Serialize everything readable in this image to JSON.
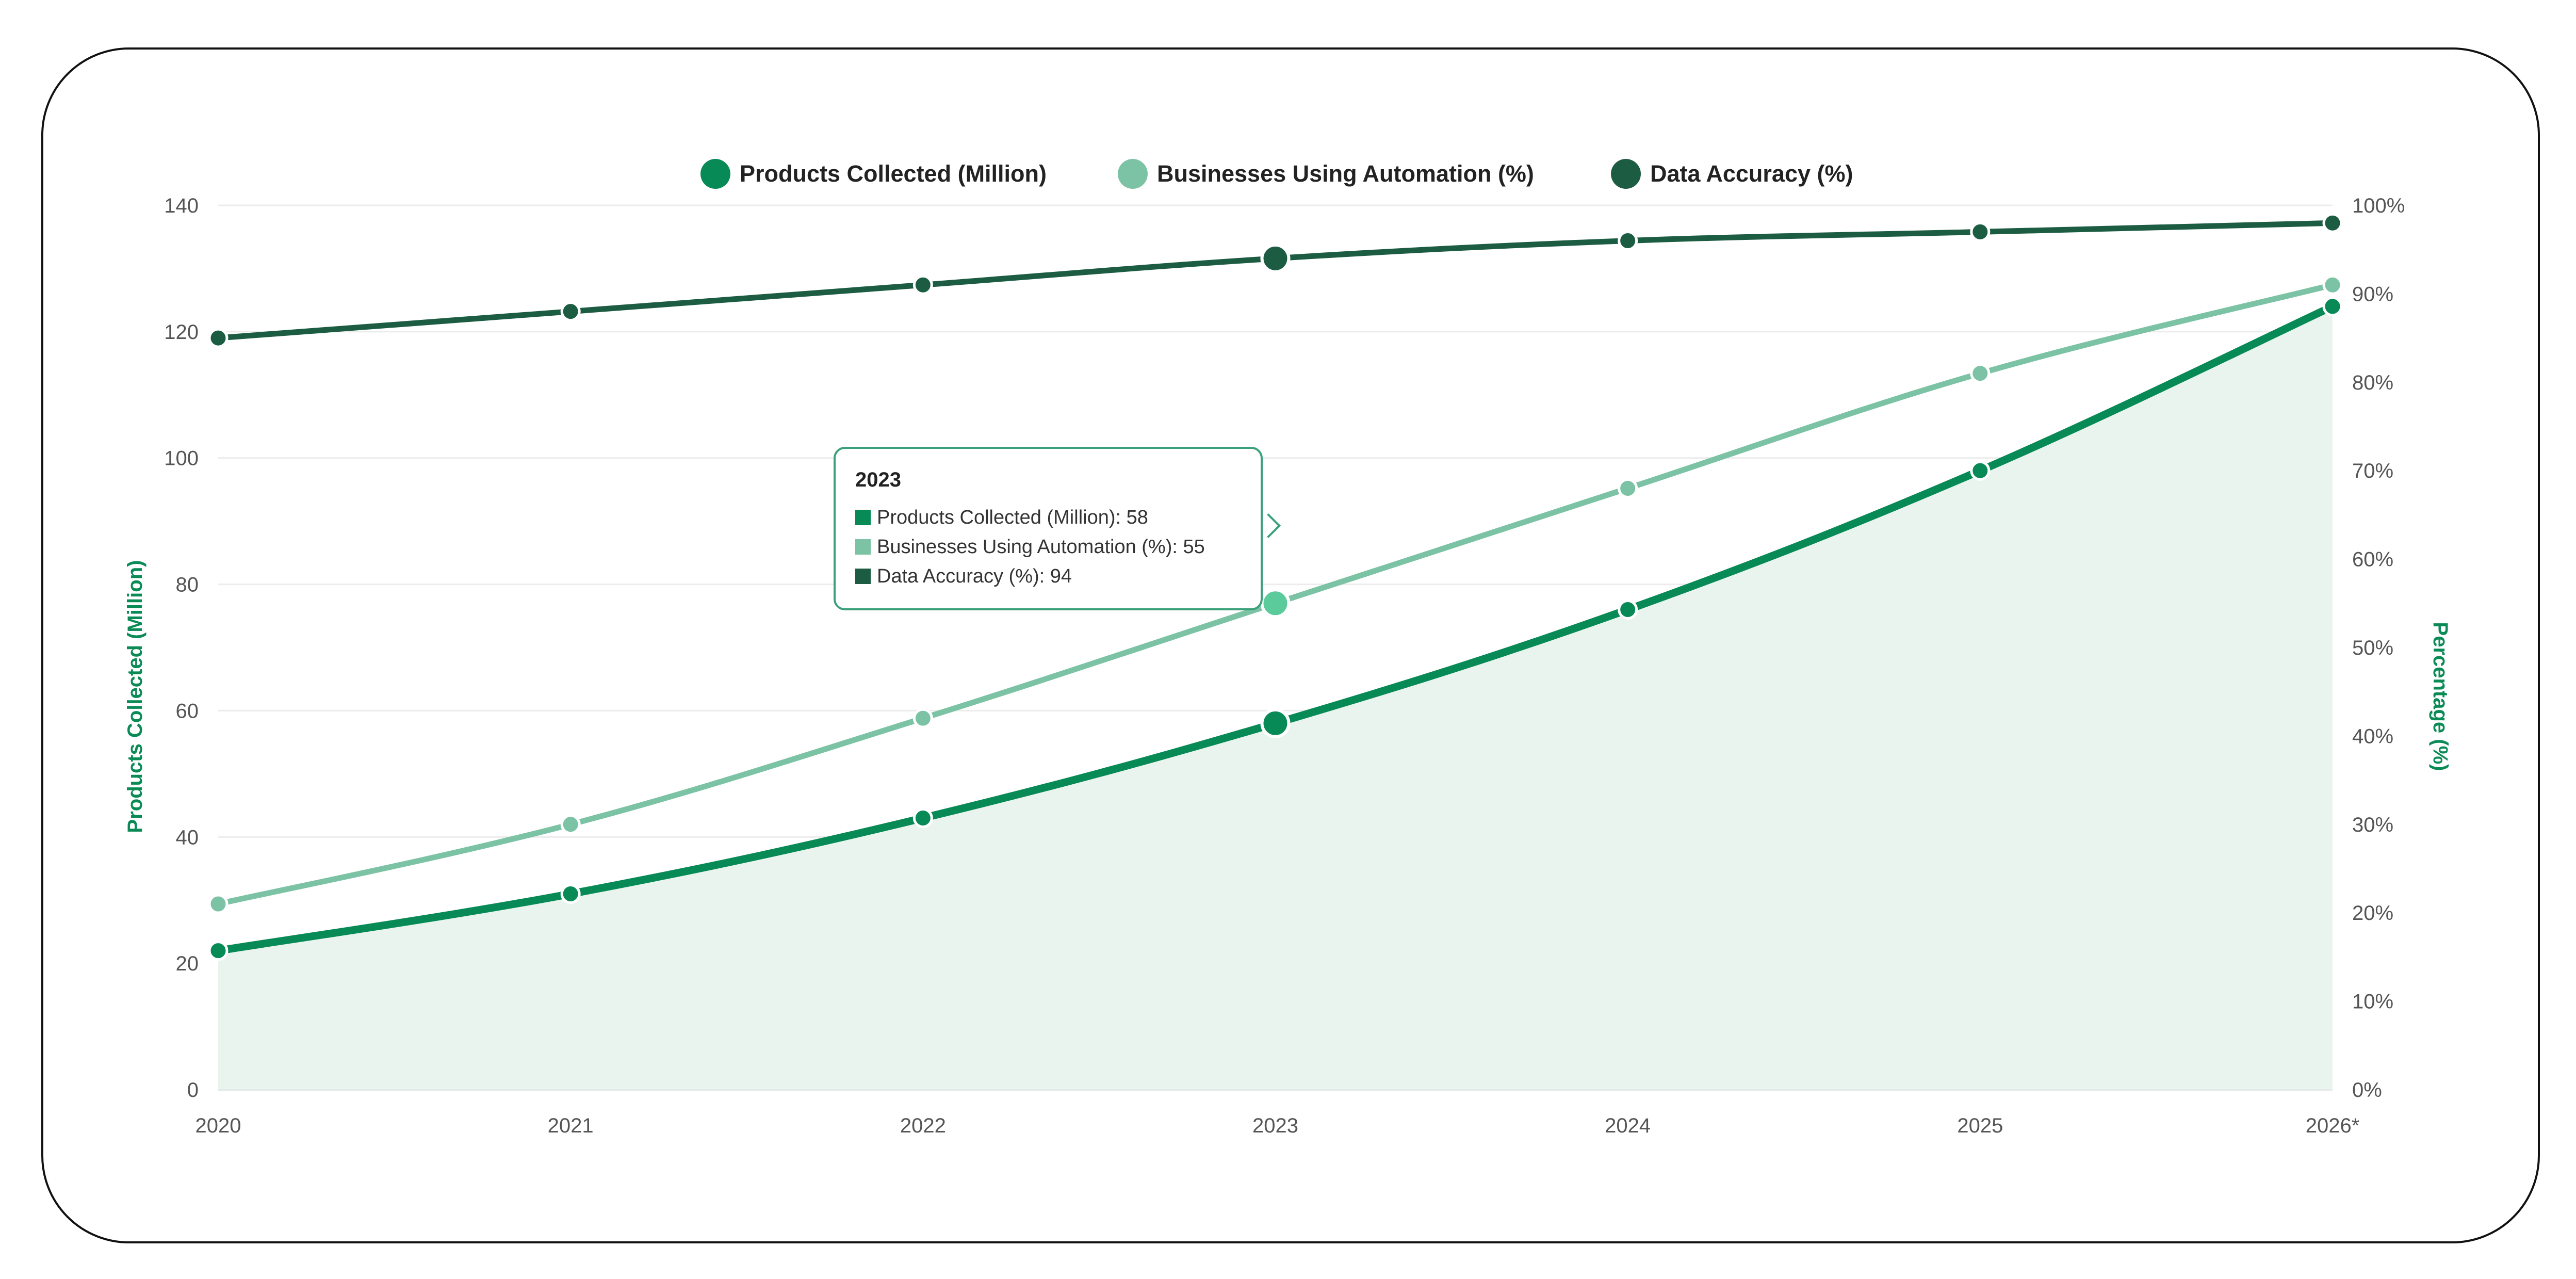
{
  "chart_data": {
    "type": "line",
    "categories": [
      "2020",
      "2021",
      "2022",
      "2023",
      "2024",
      "2025",
      "2026*"
    ],
    "series": [
      {
        "name": "Products Collected (Million)",
        "axis": "left",
        "color": "#078a55",
        "area": true,
        "values": [
          22,
          31,
          43,
          58,
          76,
          98,
          124
        ]
      },
      {
        "name": "Businesses Using Automation (%)",
        "axis": "right",
        "color": "#7cc3a5",
        "values": [
          21,
          30,
          42,
          55,
          68,
          81,
          91
        ]
      },
      {
        "name": "Data Accuracy (%)",
        "axis": "right",
        "color": "#1c5c42",
        "values": [
          85,
          88,
          91,
          94,
          96,
          97,
          98
        ]
      }
    ],
    "y_left": {
      "label": "Products Collected (Million)",
      "min": 0,
      "max": 140,
      "ticks": [
        "0",
        "20",
        "40",
        "60",
        "80",
        "100",
        "120",
        "140"
      ]
    },
    "y_right": {
      "label": "Percentage (%)",
      "min": 0,
      "max": 100,
      "ticks": [
        "0%",
        "10%",
        "20%",
        "30%",
        "40%",
        "50%",
        "60%",
        "70%",
        "80%",
        "90%",
        "100%"
      ]
    },
    "grid": true,
    "legend_position": "top-center",
    "tooltip": {
      "title": "2023",
      "rows": [
        {
          "label": "Products Collected (Million): 58",
          "color": "#078a55"
        },
        {
          "label": "Businesses Using Automation (%): 55",
          "color": "#7cc3a5"
        },
        {
          "label": "Data Accuracy (%): 94",
          "color": "#1c5c42"
        }
      ]
    },
    "highlight_index": 3
  }
}
